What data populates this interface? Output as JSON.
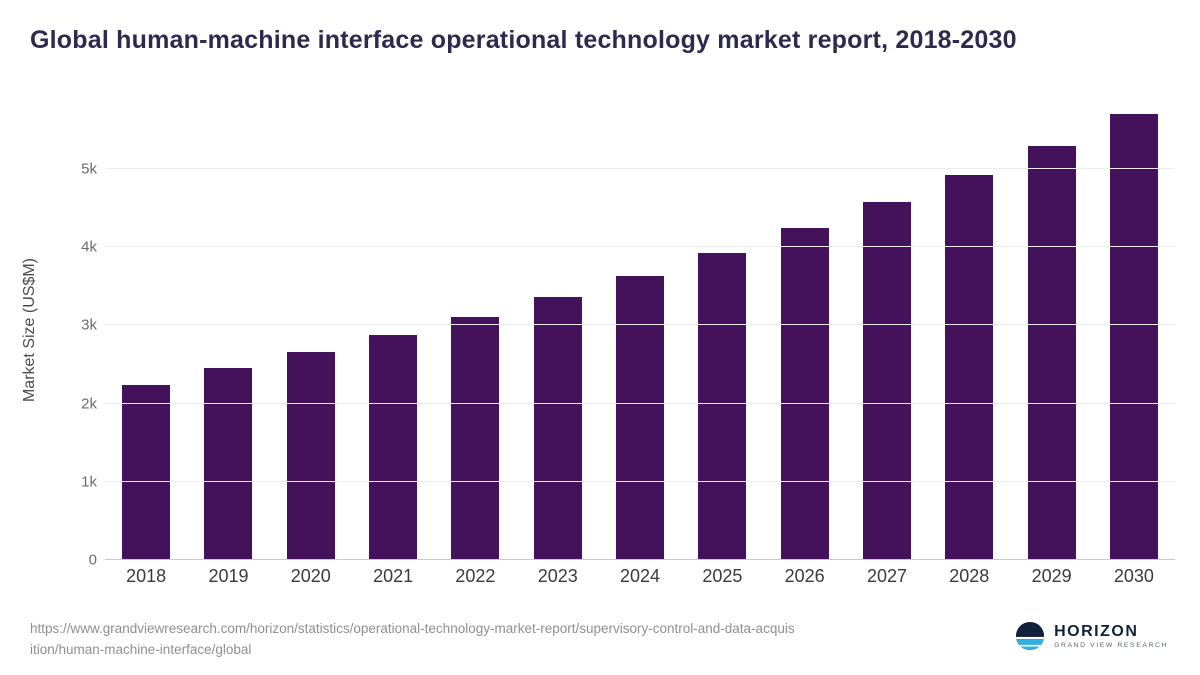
{
  "title": "Global human-machine interface operational technology market report, 2018-2030",
  "chart_data": {
    "type": "bar",
    "categories": [
      "2018",
      "2019",
      "2020",
      "2021",
      "2022",
      "2023",
      "2024",
      "2025",
      "2026",
      "2027",
      "2028",
      "2029",
      "2030"
    ],
    "values": [
      2240,
      2460,
      2660,
      2870,
      3100,
      3360,
      3630,
      3930,
      4240,
      4580,
      4920,
      5290,
      5700
    ],
    "title": "Global human-machine interface operational technology market report, 2018-2030",
    "xlabel": "",
    "ylabel": "Market Size (US$M)",
    "ylim": [
      0,
      5880
    ],
    "yticks": [
      {
        "value": 0,
        "label": "0"
      },
      {
        "value": 1000,
        "label": "1k"
      },
      {
        "value": 2000,
        "label": "2k"
      },
      {
        "value": 3000,
        "label": "3k"
      },
      {
        "value": 4000,
        "label": "4k"
      },
      {
        "value": 5000,
        "label": "5k"
      }
    ],
    "grid": true,
    "legend": "none",
    "bar_color": "#44125a"
  },
  "source": {
    "line1": "https://www.grandviewresearch.com/horizon/statistics/operational-technology-market-report/supervisory-control-and-data-acquis",
    "line2": "ition/human-machine-interface/global"
  },
  "logo": {
    "name": "HORIZON",
    "subtitle": "GRAND VIEW RESEARCH",
    "icon": "horizon-circle-icon",
    "colors": {
      "navy": "#12203c",
      "teal": "#2fb1e3"
    }
  }
}
